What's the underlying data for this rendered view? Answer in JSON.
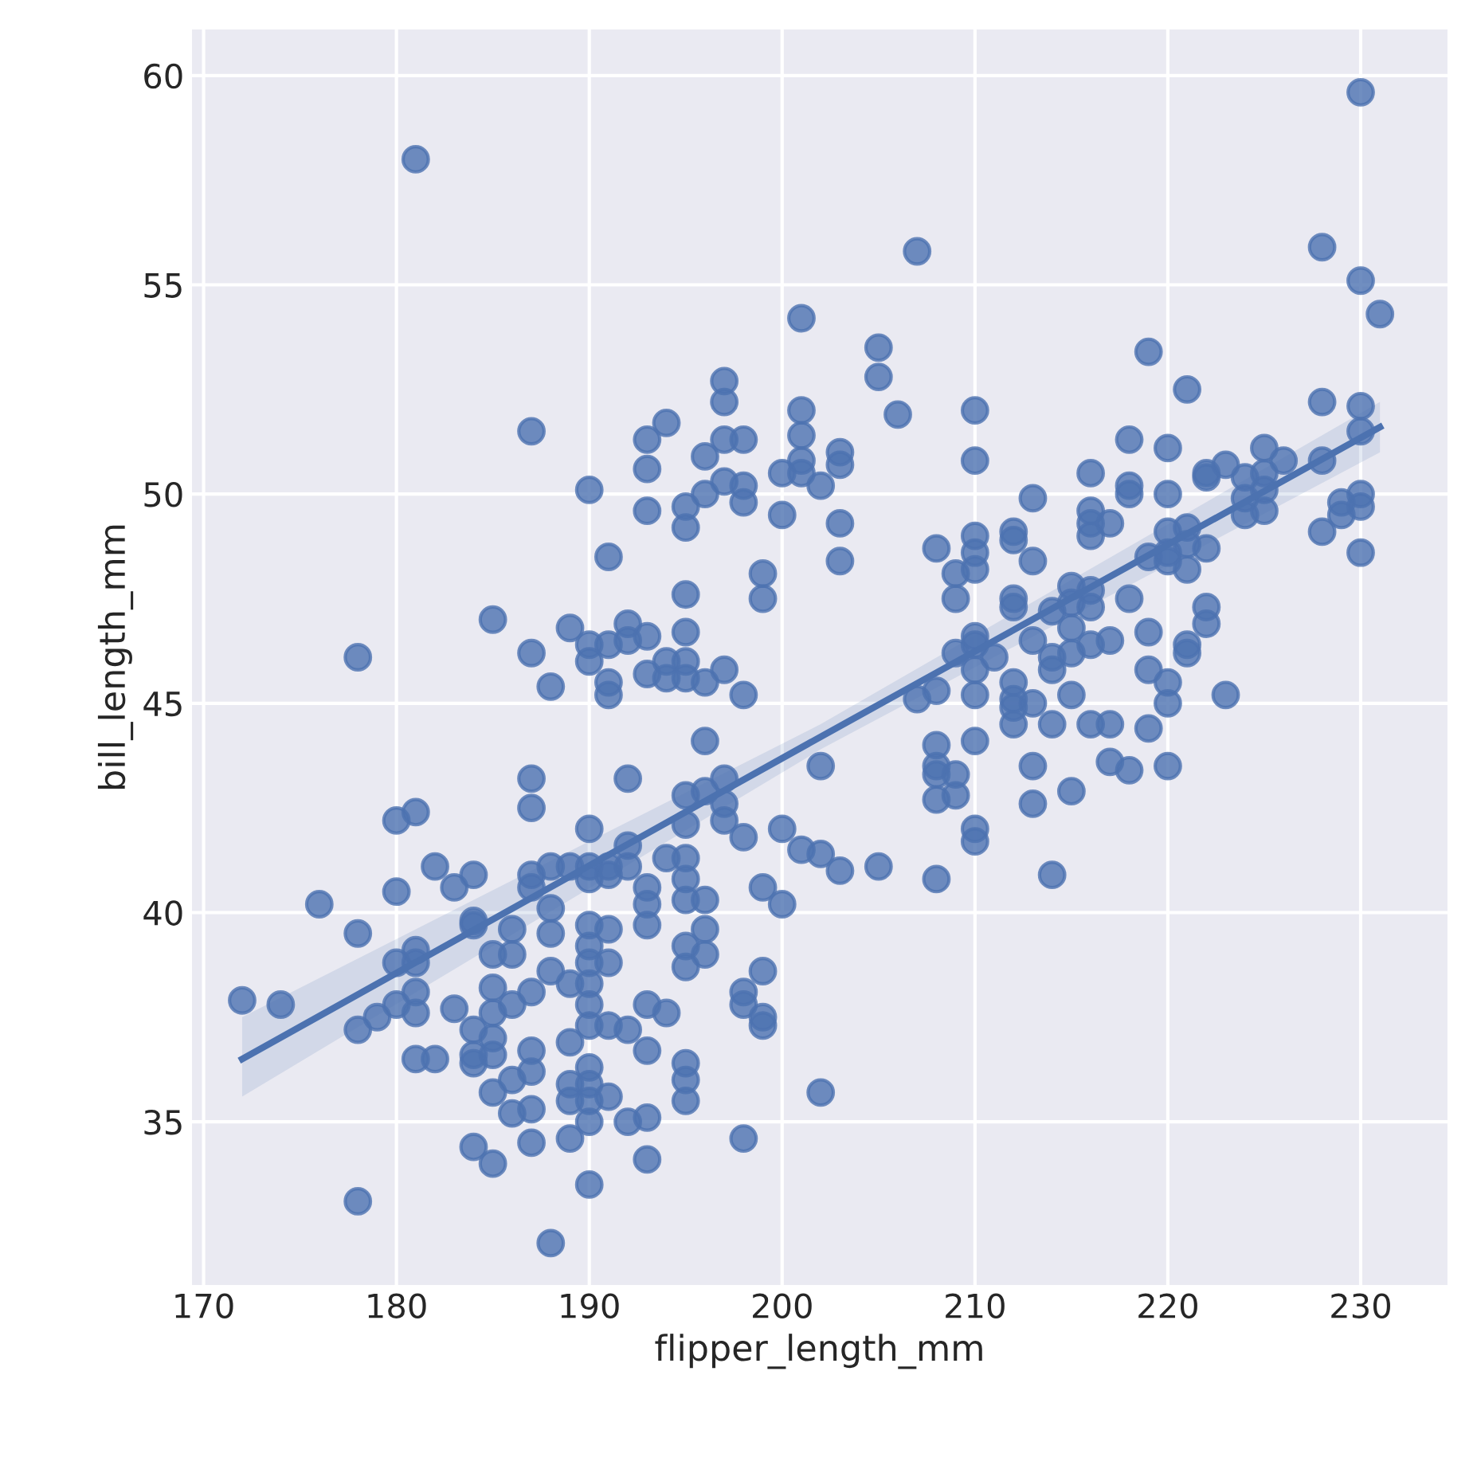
{
  "chart_data": {
    "type": "scatter",
    "xlabel": "flipper_length_mm",
    "ylabel": "bill_length_mm",
    "xlim": [
      169.4,
      234.5
    ],
    "ylim": [
      31.1,
      61.1
    ],
    "xticks": [
      170,
      180,
      190,
      200,
      210,
      220,
      230
    ],
    "yticks": [
      35,
      40,
      45,
      50,
      55,
      60
    ],
    "grid": true,
    "series": [
      {
        "marker": "circle",
        "color": "#4c72b0",
        "x": [
          172,
          174,
          176,
          178,
          178,
          178,
          178,
          179,
          180,
          180,
          180,
          180,
          181,
          181,
          181,
          181,
          181,
          181,
          181,
          182,
          182,
          183,
          183,
          184,
          184,
          184,
          184,
          184,
          184,
          184,
          185,
          185,
          185,
          185,
          185,
          185,
          185,
          185,
          186,
          186,
          186,
          186,
          186,
          187,
          187,
          187,
          187,
          187,
          187,
          187,
          187,
          187,
          187,
          187,
          188,
          188,
          188,
          188,
          188,
          188,
          189,
          189,
          189,
          189,
          189,
          189,
          189,
          190,
          190,
          190,
          190,
          190,
          190,
          190,
          190,
          190,
          190,
          190,
          190,
          190,
          190,
          190,
          190,
          190,
          191,
          191,
          191,
          191,
          191,
          191,
          191,
          191,
          191,
          191,
          192,
          192,
          192,
          192,
          192,
          192,
          192,
          193,
          193,
          193,
          193,
          193,
          193,
          193,
          193,
          193,
          193,
          193,
          193,
          194,
          194,
          194,
          194,
          194,
          195,
          195,
          195,
          195,
          195,
          195,
          195,
          195,
          195,
          195,
          195,
          195,
          195,
          195,
          195,
          195,
          196,
          196,
          196,
          196,
          196,
          196,
          196,
          196,
          197,
          197,
          197,
          197,
          197,
          197,
          197,
          197,
          198,
          198,
          198,
          198,
          198,
          198,
          198,
          198,
          199,
          199,
          199,
          199,
          199,
          199,
          200,
          200,
          200,
          200,
          201,
          201,
          201,
          201,
          201,
          201,
          202,
          202,
          202,
          202,
          203,
          203,
          203,
          203,
          203,
          205,
          205,
          205,
          206,
          207,
          207,
          208,
          208,
          208,
          208,
          208,
          208,
          208,
          209,
          209,
          209,
          209,
          209,
          210,
          210,
          210,
          210,
          210,
          210,
          210,
          210,
          210,
          210,
          210,
          210,
          211,
          212,
          212,
          212,
          212,
          212,
          212,
          212,
          212,
          213,
          213,
          213,
          213,
          213,
          213,
          214,
          214,
          214,
          214,
          214,
          215,
          215,
          215,
          215,
          215,
          215,
          216,
          216,
          216,
          216,
          216,
          216,
          216,
          216,
          217,
          217,
          217,
          217,
          218,
          218,
          218,
          218,
          218,
          219,
          219,
          219,
          219,
          219,
          220,
          220,
          220,
          220,
          220,
          220,
          220,
          220,
          221,
          221,
          221,
          221,
          221,
          221,
          222,
          222,
          222,
          222,
          222,
          223,
          223,
          224,
          224,
          224,
          225,
          225,
          225,
          225,
          226,
          228,
          228,
          228,
          228,
          229,
          229,
          230,
          230,
          230,
          230,
          230,
          230,
          230,
          231
        ],
        "values": [
          37.9,
          37.8,
          40.2,
          46.1,
          39.5,
          37.2,
          33.1,
          37.5,
          42.2,
          40.5,
          38.8,
          37.8,
          58.0,
          42.4,
          39.1,
          38.8,
          38.1,
          37.6,
          36.5,
          41.1,
          36.5,
          40.6,
          37.7,
          40.9,
          39.8,
          39.7,
          37.2,
          36.6,
          36.4,
          34.4,
          47.0,
          39.0,
          38.2,
          37.6,
          37.0,
          36.6,
          35.7,
          34.0,
          39.6,
          39.0,
          37.8,
          36.0,
          35.2,
          51.5,
          46.2,
          43.2,
          42.5,
          40.9,
          40.6,
          38.1,
          36.7,
          36.2,
          35.3,
          34.5,
          45.4,
          41.1,
          40.1,
          39.5,
          38.6,
          32.1,
          46.8,
          41.1,
          38.3,
          36.9,
          35.9,
          35.5,
          34.6,
          50.1,
          46.4,
          46.0,
          42.0,
          41.1,
          40.8,
          39.7,
          39.2,
          38.8,
          38.3,
          37.8,
          37.3,
          36.3,
          35.9,
          35.5,
          35.0,
          33.5,
          48.5,
          46.4,
          45.5,
          45.2,
          41.1,
          40.9,
          39.6,
          38.8,
          37.3,
          35.6,
          46.9,
          46.5,
          43.2,
          41.6,
          41.1,
          37.2,
          35.0,
          51.3,
          50.6,
          49.6,
          46.6,
          45.7,
          40.6,
          40.2,
          39.7,
          37.8,
          36.7,
          35.1,
          34.1,
          51.7,
          46.0,
          45.6,
          41.3,
          37.6,
          49.7,
          49.2,
          47.6,
          46.7,
          46.0,
          45.6,
          42.8,
          42.1,
          41.3,
          40.8,
          40.3,
          39.2,
          38.7,
          36.4,
          36.0,
          35.5,
          50.9,
          50.0,
          45.5,
          44.1,
          42.9,
          40.3,
          39.6,
          39.0,
          52.7,
          52.2,
          51.3,
          50.3,
          45.8,
          43.2,
          42.6,
          42.2,
          51.3,
          50.2,
          49.8,
          45.2,
          41.8,
          38.1,
          37.8,
          34.6,
          48.1,
          47.5,
          40.6,
          38.6,
          37.5,
          37.3,
          50.5,
          49.5,
          42.0,
          40.2,
          54.2,
          52.0,
          51.4,
          50.8,
          50.5,
          41.5,
          50.2,
          43.5,
          41.4,
          35.7,
          51.0,
          50.7,
          49.3,
          48.4,
          41.0,
          53.5,
          52.8,
          41.1,
          51.9,
          55.8,
          45.1,
          48.7,
          45.3,
          44.0,
          43.5,
          43.3,
          42.7,
          40.8,
          48.1,
          47.5,
          46.2,
          43.3,
          42.8,
          52.0,
          50.8,
          49.0,
          48.6,
          48.2,
          46.6,
          46.4,
          45.8,
          45.2,
          44.1,
          42.0,
          41.7,
          46.1,
          49.1,
          48.9,
          47.5,
          47.3,
          45.5,
          45.1,
          44.9,
          44.5,
          49.9,
          48.4,
          46.5,
          45.0,
          43.5,
          42.6,
          47.2,
          46.1,
          45.8,
          44.5,
          40.9,
          47.8,
          47.4,
          46.8,
          46.2,
          45.2,
          42.9,
          50.5,
          49.6,
          49.3,
          49.0,
          47.7,
          47.3,
          46.4,
          44.5,
          49.3,
          46.5,
          44.5,
          43.6,
          51.3,
          50.2,
          50.0,
          47.5,
          43.4,
          53.4,
          48.5,
          46.7,
          45.8,
          44.4,
          51.1,
          50.0,
          49.1,
          48.6,
          48.4,
          45.5,
          45.0,
          43.5,
          52.5,
          49.2,
          48.8,
          48.2,
          46.4,
          46.2,
          50.5,
          50.4,
          48.7,
          47.3,
          46.9,
          50.7,
          45.2,
          50.4,
          49.9,
          49.5,
          51.1,
          50.5,
          50.1,
          49.6,
          50.8,
          55.9,
          52.2,
          50.8,
          49.1,
          49.8,
          49.5,
          59.6,
          55.1,
          52.1,
          51.5,
          50.0,
          49.7,
          48.6,
          54.3
        ]
      },
      {
        "type": "line",
        "marker": "none",
        "color": "#4c72b0",
        "x": [
          172,
          202,
          231
        ],
        "values": [
          36.5,
          44.2,
          51.6
        ],
        "lower": [
          35.6,
          43.9,
          51.0
        ],
        "upper": [
          37.5,
          44.5,
          52.2
        ]
      }
    ]
  }
}
